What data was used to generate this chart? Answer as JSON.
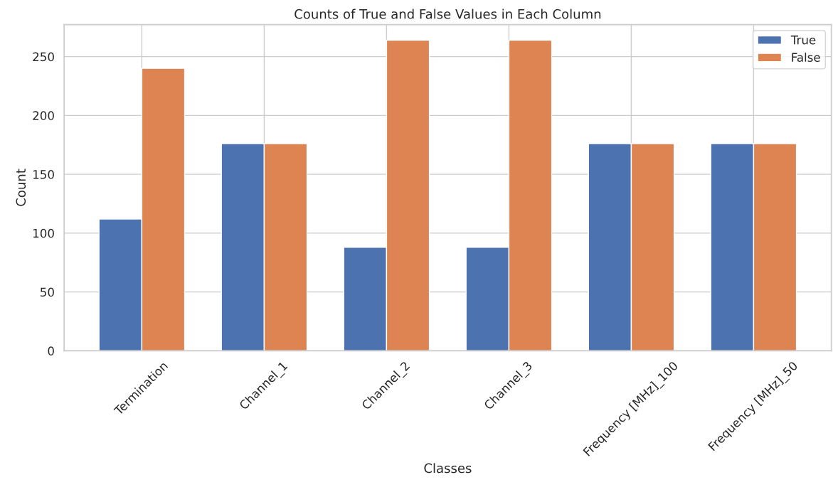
{
  "chart_data": {
    "type": "bar",
    "title": "Counts of True and False Values in Each Column",
    "xlabel": "Classes",
    "ylabel": "Count",
    "categories": [
      "Termination",
      "Channel_1",
      "Channel_2",
      "Channel_3",
      "Frequency [MHz]_100",
      "Frequency [MHz]_50"
    ],
    "series": [
      {
        "name": "True",
        "color": "#4c72b0",
        "values": [
          112,
          176,
          88,
          88,
          176,
          176
        ]
      },
      {
        "name": "False",
        "color": "#dd8452",
        "values": [
          240,
          176,
          264,
          264,
          176,
          176
        ]
      }
    ],
    "ylim": [
      0,
      277.2
    ],
    "yticks": [
      0,
      50,
      100,
      150,
      200,
      250
    ],
    "grid": true,
    "legend": "top right"
  }
}
